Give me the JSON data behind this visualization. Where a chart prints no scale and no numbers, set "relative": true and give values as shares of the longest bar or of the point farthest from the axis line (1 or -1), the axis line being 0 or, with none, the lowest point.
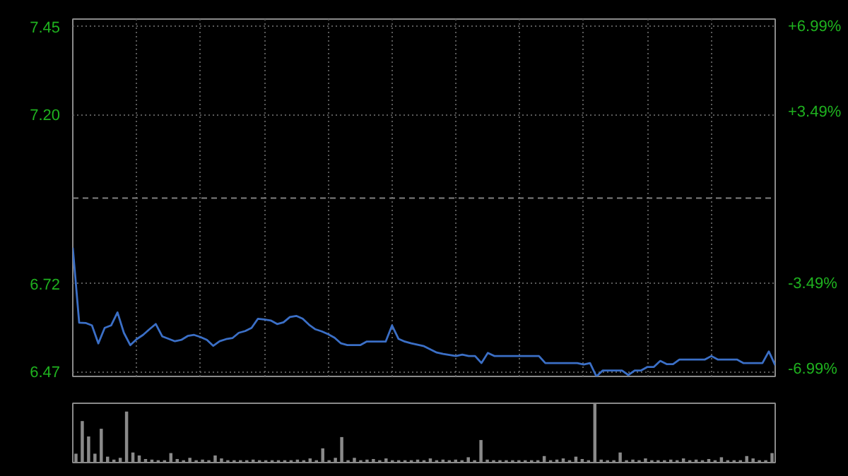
{
  "chart_data": [
    {
      "type": "line",
      "categories": [
        null,
        null,
        null,
        null,
        null,
        null,
        null,
        null,
        null,
        null,
        null,
        null,
        null,
        null,
        null,
        null,
        null,
        null,
        null,
        null,
        null,
        null,
        null,
        null,
        null,
        null,
        null,
        null,
        null,
        null,
        null,
        null,
        null,
        null,
        null,
        null,
        null,
        null,
        null,
        null,
        null,
        null,
        null,
        null,
        null,
        null,
        null,
        null,
        null,
        null,
        null,
        null,
        null,
        null,
        null,
        null,
        null,
        null,
        null,
        null,
        null,
        null,
        null,
        null,
        null,
        null,
        null,
        null,
        null,
        null,
        null,
        null,
        null,
        null,
        null,
        null,
        null,
        null,
        null,
        null,
        null,
        null,
        null,
        null,
        null,
        null,
        null,
        null,
        null,
        null,
        null,
        null,
        null,
        null,
        null,
        null,
        null,
        null,
        null,
        null,
        null,
        null,
        null,
        null,
        null,
        null,
        null,
        null,
        null,
        null,
        null
      ],
      "series": [
        {
          "color": "#3b6fc6",
          "values": [
            6.822,
            6.609,
            6.608,
            6.601,
            6.55,
            6.594,
            6.601,
            6.638,
            6.58,
            6.545,
            6.562,
            6.574,
            6.59,
            6.605,
            6.57,
            6.563,
            6.556,
            6.56,
            6.571,
            6.574,
            6.568,
            6.56,
            6.543,
            6.556,
            6.562,
            6.565,
            6.58,
            6.585,
            6.594,
            6.62,
            6.618,
            6.615,
            6.605,
            6.61,
            6.625,
            6.628,
            6.62,
            6.603,
            6.59,
            6.584,
            6.576,
            6.566,
            6.55,
            6.545,
            6.545,
            6.545,
            6.555,
            6.555,
            6.555,
            6.555,
            6.601,
            6.563,
            6.555,
            6.55,
            6.546,
            6.542,
            6.533,
            6.524,
            6.52,
            6.517,
            6.514,
            6.518,
            6.514,
            6.514,
            6.494,
            6.523,
            6.514,
            6.514,
            6.514,
            6.514,
            6.514,
            6.514,
            6.514,
            6.514,
            6.494,
            6.494,
            6.494,
            6.494,
            6.494,
            6.494,
            6.49,
            6.494,
            6.456,
            6.473,
            6.473,
            6.473,
            6.473,
            6.46,
            6.473,
            6.473,
            6.483,
            6.483,
            6.5,
            6.491,
            6.491,
            6.504,
            6.504,
            6.504,
            6.504,
            6.504,
            6.514,
            6.504,
            6.504,
            6.504,
            6.504,
            6.494,
            6.494,
            6.494,
            6.494,
            6.527,
            6.488
          ]
        }
      ],
      "ylim": [
        6.456,
        7.472
      ],
      "yticks": [
        7.45,
        {
          "value": 7.2,
          "label": "7.20"
        },
        6.72,
        6.47
      ],
      "y2lim": [
        -7.28,
        7.31
      ],
      "y2ticks": [
        {
          "value": 6.99,
          "label": "+6.99%"
        },
        {
          "value": 3.49,
          "label": "+3.49%"
        },
        {
          "value": -3.49,
          "label": "-3.49%"
        },
        {
          "value": -6.99,
          "label": "-6.99%"
        }
      ],
      "ref_lines": [
        {
          "axis": "y",
          "value": 6.963,
          "color": "#808080",
          "line_style": "dashed"
        }
      ],
      "grid": true
    },
    {
      "type": "bar",
      "relative": true,
      "color": "#8a8a8a",
      "categories": [
        null,
        null,
        null,
        null,
        null,
        null,
        null,
        null,
        null,
        null,
        null,
        null,
        null,
        null,
        null,
        null,
        null,
        null,
        null,
        null,
        null,
        null,
        null,
        null,
        null,
        null,
        null,
        null,
        null,
        null,
        null,
        null,
        null,
        null,
        null,
        null,
        null,
        null,
        null,
        null,
        null,
        null,
        null,
        null,
        null,
        null,
        null,
        null,
        null,
        null,
        null,
        null,
        null,
        null,
        null,
        null,
        null,
        null,
        null,
        null,
        null,
        null,
        null,
        null,
        null,
        null,
        null,
        null,
        null,
        null,
        null,
        null,
        null,
        null,
        null,
        null,
        null,
        null,
        null,
        null,
        null,
        null,
        null,
        null,
        null,
        null,
        null,
        null,
        null,
        null,
        null,
        null,
        null,
        null,
        null,
        null,
        null,
        null,
        null,
        null,
        null,
        null,
        null,
        null,
        null,
        null,
        null,
        null,
        null,
        null,
        null
      ],
      "values": [
        0.15,
        0.7,
        0.44,
        0.15,
        0.57,
        0.1,
        0.05,
        0.08,
        0.86,
        0.17,
        0.12,
        0.06,
        0.05,
        0.04,
        0.04,
        0.16,
        0.06,
        0.04,
        0.08,
        0.04,
        0.05,
        0.04,
        0.12,
        0.07,
        0.04,
        0.04,
        0.04,
        0.04,
        0.05,
        0.04,
        0.04,
        0.04,
        0.04,
        0.04,
        0.04,
        0.05,
        0.04,
        0.07,
        0.04,
        0.24,
        0.04,
        0.08,
        0.43,
        0.04,
        0.08,
        0.04,
        0.05,
        0.06,
        0.04,
        0.07,
        0.04,
        0.04,
        0.04,
        0.04,
        0.05,
        0.04,
        0.07,
        0.04,
        0.05,
        0.04,
        0.05,
        0.04,
        0.09,
        0.04,
        0.38,
        0.05,
        0.04,
        0.04,
        0.04,
        0.04,
        0.04,
        0.04,
        0.04,
        0.04,
        0.11,
        0.04,
        0.05,
        0.07,
        0.04,
        0.1,
        0.06,
        0.04,
        1.0,
        0.05,
        0.04,
        0.04,
        0.17,
        0.04,
        0.05,
        0.04,
        0.07,
        0.04,
        0.04,
        0.04,
        0.05,
        0.04,
        0.07,
        0.04,
        0.05,
        0.04,
        0.06,
        0.04,
        0.09,
        0.04,
        0.04,
        0.04,
        0.11,
        0.07,
        0.04,
        0.04,
        0.16
      ]
    }
  ]
}
